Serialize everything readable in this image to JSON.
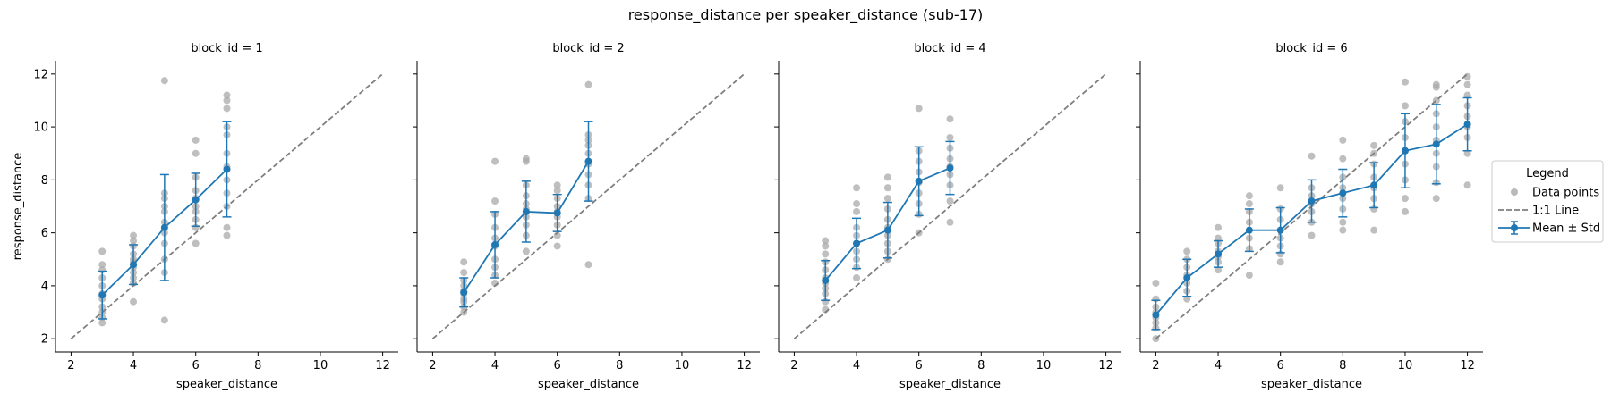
{
  "figure_title": "response_distance per speaker_distance (sub-17)",
  "legend": {
    "title": "Legend",
    "entries": [
      "Data points",
      "1:1 Line",
      "Mean ± Std"
    ]
  },
  "colors": {
    "points": "#a9a9a9",
    "identity_line": "#7f7f7f",
    "mean": "#1f77b4"
  },
  "chart_data": [
    {
      "type": "scatter",
      "title": "block_id = 1",
      "xlabel": "speaker_distance",
      "ylabel": "response_distance",
      "xticks": [
        2,
        4,
        6,
        8,
        10,
        12
      ],
      "yticks": [
        2,
        4,
        6,
        8,
        10,
        12
      ],
      "xlim": [
        1.5,
        12.5
      ],
      "ylim": [
        1.5,
        12.5
      ],
      "identity_line": [
        2,
        12
      ],
      "mean": {
        "x": [
          3,
          4,
          5,
          6,
          7
        ],
        "y": [
          3.65,
          4.8,
          6.2,
          7.25,
          8.4
        ],
        "std": [
          0.9,
          0.75,
          2.0,
          1.0,
          1.8
        ]
      },
      "points": [
        [
          3,
          2.6
        ],
        [
          3,
          2.8
        ],
        [
          3,
          3.0
        ],
        [
          3,
          3.2
        ],
        [
          3,
          3.5
        ],
        [
          3,
          3.7
        ],
        [
          3,
          4.0
        ],
        [
          3,
          4.3
        ],
        [
          3,
          4.6
        ],
        [
          3,
          4.8
        ],
        [
          3,
          5.3
        ],
        [
          4,
          3.4
        ],
        [
          4,
          4.1
        ],
        [
          4,
          4.3
        ],
        [
          4,
          4.5
        ],
        [
          4,
          4.7
        ],
        [
          4,
          4.9
        ],
        [
          4,
          5.0
        ],
        [
          4,
          5.2
        ],
        [
          4,
          5.5
        ],
        [
          4,
          5.7
        ],
        [
          4,
          5.9
        ],
        [
          5,
          2.7
        ],
        [
          5,
          4.5
        ],
        [
          5,
          5.0
        ],
        [
          5,
          5.6
        ],
        [
          5,
          6.0
        ],
        [
          5,
          6.4
        ],
        [
          5,
          6.8
        ],
        [
          5,
          7.0
        ],
        [
          5,
          7.3
        ],
        [
          5,
          7.5
        ],
        [
          5,
          11.75
        ],
        [
          6,
          5.6
        ],
        [
          6,
          6.2
        ],
        [
          6,
          6.5
        ],
        [
          6,
          6.8
        ],
        [
          6,
          7.0
        ],
        [
          6,
          7.3
        ],
        [
          6,
          7.6
        ],
        [
          6,
          8.1
        ],
        [
          6,
          9.0
        ],
        [
          6,
          9.5
        ],
        [
          7,
          5.9
        ],
        [
          7,
          6.2
        ],
        [
          7,
          7.0
        ],
        [
          7,
          7.5
        ],
        [
          7,
          8.0
        ],
        [
          7,
          8.5
        ],
        [
          7,
          9.0
        ],
        [
          7,
          9.7
        ],
        [
          7,
          10.0
        ],
        [
          7,
          10.7
        ],
        [
          7,
          11.0
        ],
        [
          7,
          11.2
        ]
      ]
    },
    {
      "type": "scatter",
      "title": "block_id = 2",
      "xlabel": "speaker_distance",
      "ylabel": "",
      "xticks": [
        2,
        4,
        6,
        8,
        10,
        12
      ],
      "yticks": [
        2,
        4,
        6,
        8,
        10,
        12
      ],
      "xlim": [
        1.5,
        12.5
      ],
      "ylim": [
        1.5,
        12.5
      ],
      "identity_line": [
        2,
        12
      ],
      "mean": {
        "x": [
          3,
          4,
          5,
          6,
          7
        ],
        "y": [
          3.75,
          5.55,
          6.8,
          6.75,
          8.7
        ],
        "std": [
          0.55,
          1.25,
          1.15,
          0.7,
          1.5
        ]
      },
      "points": [
        [
          3,
          3.0
        ],
        [
          3,
          3.2
        ],
        [
          3,
          3.4
        ],
        [
          3,
          3.5
        ],
        [
          3,
          3.7
        ],
        [
          3,
          3.8
        ],
        [
          3,
          4.0
        ],
        [
          3,
          4.2
        ],
        [
          3,
          4.5
        ],
        [
          3,
          4.9
        ],
        [
          4,
          4.1
        ],
        [
          4,
          4.4
        ],
        [
          4,
          4.7
        ],
        [
          4,
          5.0
        ],
        [
          4,
          5.5
        ],
        [
          4,
          5.8
        ],
        [
          4,
          6.2
        ],
        [
          4,
          6.7
        ],
        [
          4,
          7.2
        ],
        [
          4,
          8.7
        ],
        [
          5,
          5.3
        ],
        [
          5,
          5.9
        ],
        [
          5,
          6.3
        ],
        [
          5,
          6.6
        ],
        [
          5,
          6.9
        ],
        [
          5,
          7.1
        ],
        [
          5,
          7.4
        ],
        [
          5,
          7.8
        ],
        [
          5,
          8.7
        ],
        [
          5,
          8.8
        ],
        [
          6,
          5.5
        ],
        [
          6,
          5.9
        ],
        [
          6,
          6.3
        ],
        [
          6,
          6.6
        ],
        [
          6,
          6.8
        ],
        [
          6,
          7.0
        ],
        [
          6,
          7.3
        ],
        [
          6,
          7.6
        ],
        [
          6,
          7.8
        ],
        [
          7,
          4.8
        ],
        [
          7,
          7.3
        ],
        [
          7,
          7.8
        ],
        [
          7,
          8.2
        ],
        [
          7,
          8.6
        ],
        [
          7,
          9.0
        ],
        [
          7,
          9.3
        ],
        [
          7,
          9.5
        ],
        [
          7,
          9.7
        ],
        [
          7,
          11.6
        ]
      ]
    },
    {
      "type": "scatter",
      "title": "block_id = 4",
      "xlabel": "speaker_distance",
      "ylabel": "",
      "xticks": [
        2,
        4,
        6,
        8,
        10,
        12
      ],
      "yticks": [
        2,
        4,
        6,
        8,
        10,
        12
      ],
      "xlim": [
        1.5,
        12.5
      ],
      "ylim": [
        1.5,
        12.5
      ],
      "identity_line": [
        2,
        12
      ],
      "mean": {
        "x": [
          3,
          4,
          5,
          6,
          7
        ],
        "y": [
          4.2,
          5.6,
          6.1,
          7.95,
          8.45
        ],
        "std": [
          0.75,
          0.95,
          1.05,
          1.3,
          1.0
        ]
      },
      "points": [
        [
          3,
          3.1
        ],
        [
          3,
          3.4
        ],
        [
          3,
          3.7
        ],
        [
          3,
          3.9
        ],
        [
          3,
          4.1
        ],
        [
          3,
          4.3
        ],
        [
          3,
          4.6
        ],
        [
          3,
          4.9
        ],
        [
          3,
          5.2
        ],
        [
          3,
          5.5
        ],
        [
          3,
          5.7
        ],
        [
          4,
          4.3
        ],
        [
          4,
          4.7
        ],
        [
          4,
          5.0
        ],
        [
          4,
          5.3
        ],
        [
          4,
          5.6
        ],
        [
          4,
          5.9
        ],
        [
          4,
          6.2
        ],
        [
          4,
          6.8
        ],
        [
          4,
          7.1
        ],
        [
          4,
          7.7
        ],
        [
          5,
          5.0
        ],
        [
          5,
          5.3
        ],
        [
          5,
          5.6
        ],
        [
          5,
          5.9
        ],
        [
          5,
          6.2
        ],
        [
          5,
          6.5
        ],
        [
          5,
          6.9
        ],
        [
          5,
          7.3
        ],
        [
          5,
          7.7
        ],
        [
          5,
          8.1
        ],
        [
          6,
          6.0
        ],
        [
          6,
          6.7
        ],
        [
          6,
          7.1
        ],
        [
          6,
          7.5
        ],
        [
          6,
          7.9
        ],
        [
          6,
          8.3
        ],
        [
          6,
          8.7
        ],
        [
          6,
          9.1
        ],
        [
          6,
          10.7
        ],
        [
          7,
          6.4
        ],
        [
          7,
          7.2
        ],
        [
          7,
          7.8
        ],
        [
          7,
          8.2
        ],
        [
          7,
          8.5
        ],
        [
          7,
          8.8
        ],
        [
          7,
          9.2
        ],
        [
          7,
          9.6
        ],
        [
          7,
          10.3
        ]
      ]
    },
    {
      "type": "scatter",
      "title": "block_id = 6",
      "xlabel": "speaker_distance",
      "ylabel": "",
      "xticks": [
        2,
        4,
        6,
        8,
        10,
        12
      ],
      "yticks": [
        2,
        4,
        6,
        8,
        10,
        12
      ],
      "xlim": [
        1.5,
        12.5
      ],
      "ylim": [
        1.5,
        12.5
      ],
      "identity_line": [
        2,
        12
      ],
      "mean": {
        "x": [
          2,
          3,
          4,
          5,
          6,
          7,
          8,
          9,
          10,
          11,
          12
        ],
        "y": [
          2.9,
          4.3,
          5.2,
          6.1,
          6.1,
          7.2,
          7.5,
          7.8,
          9.1,
          9.35,
          10.1
        ],
        "std": [
          0.55,
          0.7,
          0.5,
          0.8,
          0.85,
          0.8,
          0.9,
          0.85,
          1.4,
          1.5,
          1.0
        ]
      },
      "points": [
        [
          2,
          2.0
        ],
        [
          2,
          2.4
        ],
        [
          2,
          2.6
        ],
        [
          2,
          2.8
        ],
        [
          2,
          3.0
        ],
        [
          2,
          3.2
        ],
        [
          2,
          3.5
        ],
        [
          2,
          4.1
        ],
        [
          3,
          3.5
        ],
        [
          3,
          3.8
        ],
        [
          3,
          4.1
        ],
        [
          3,
          4.4
        ],
        [
          3,
          4.7
        ],
        [
          3,
          5.0
        ],
        [
          3,
          5.3
        ],
        [
          4,
          4.6
        ],
        [
          4,
          4.9
        ],
        [
          4,
          5.1
        ],
        [
          4,
          5.3
        ],
        [
          4,
          5.6
        ],
        [
          4,
          5.8
        ],
        [
          4,
          6.2
        ],
        [
          5,
          4.4
        ],
        [
          5,
          5.4
        ],
        [
          5,
          5.8
        ],
        [
          5,
          6.1
        ],
        [
          5,
          6.4
        ],
        [
          5,
          6.8
        ],
        [
          5,
          7.1
        ],
        [
          5,
          7.4
        ],
        [
          6,
          4.9
        ],
        [
          6,
          5.2
        ],
        [
          6,
          5.5
        ],
        [
          6,
          5.8
        ],
        [
          6,
          6.1
        ],
        [
          6,
          6.5
        ],
        [
          6,
          6.9
        ],
        [
          6,
          7.7
        ],
        [
          7,
          5.9
        ],
        [
          7,
          6.4
        ],
        [
          7,
          6.8
        ],
        [
          7,
          7.1
        ],
        [
          7,
          7.4
        ],
        [
          7,
          7.7
        ],
        [
          7,
          8.9
        ],
        [
          8,
          6.1
        ],
        [
          8,
          6.4
        ],
        [
          8,
          6.9
        ],
        [
          8,
          7.3
        ],
        [
          8,
          7.7
        ],
        [
          8,
          8.1
        ],
        [
          8,
          8.8
        ],
        [
          8,
          9.5
        ],
        [
          9,
          6.1
        ],
        [
          9,
          6.9
        ],
        [
          9,
          7.3
        ],
        [
          9,
          7.7
        ],
        [
          9,
          8.1
        ],
        [
          9,
          8.6
        ],
        [
          9,
          9.0
        ],
        [
          9,
          9.3
        ],
        [
          10,
          6.8
        ],
        [
          10,
          7.3
        ],
        [
          10,
          8.0
        ],
        [
          10,
          8.6
        ],
        [
          10,
          9.1
        ],
        [
          10,
          9.6
        ],
        [
          10,
          10.2
        ],
        [
          10,
          10.8
        ],
        [
          10,
          11.7
        ],
        [
          11,
          7.3
        ],
        [
          11,
          7.9
        ],
        [
          11,
          8.5
        ],
        [
          11,
          9.0
        ],
        [
          11,
          9.5
        ],
        [
          11,
          10.0
        ],
        [
          11,
          10.5
        ],
        [
          11,
          11.0
        ],
        [
          11,
          11.5
        ],
        [
          11,
          11.6
        ],
        [
          12,
          7.8
        ],
        [
          12,
          9.0
        ],
        [
          12,
          9.6
        ],
        [
          12,
          10.0
        ],
        [
          12,
          10.4
        ],
        [
          12,
          10.8
        ],
        [
          12,
          11.2
        ],
        [
          12,
          11.6
        ],
        [
          12,
          11.9
        ]
      ]
    }
  ]
}
